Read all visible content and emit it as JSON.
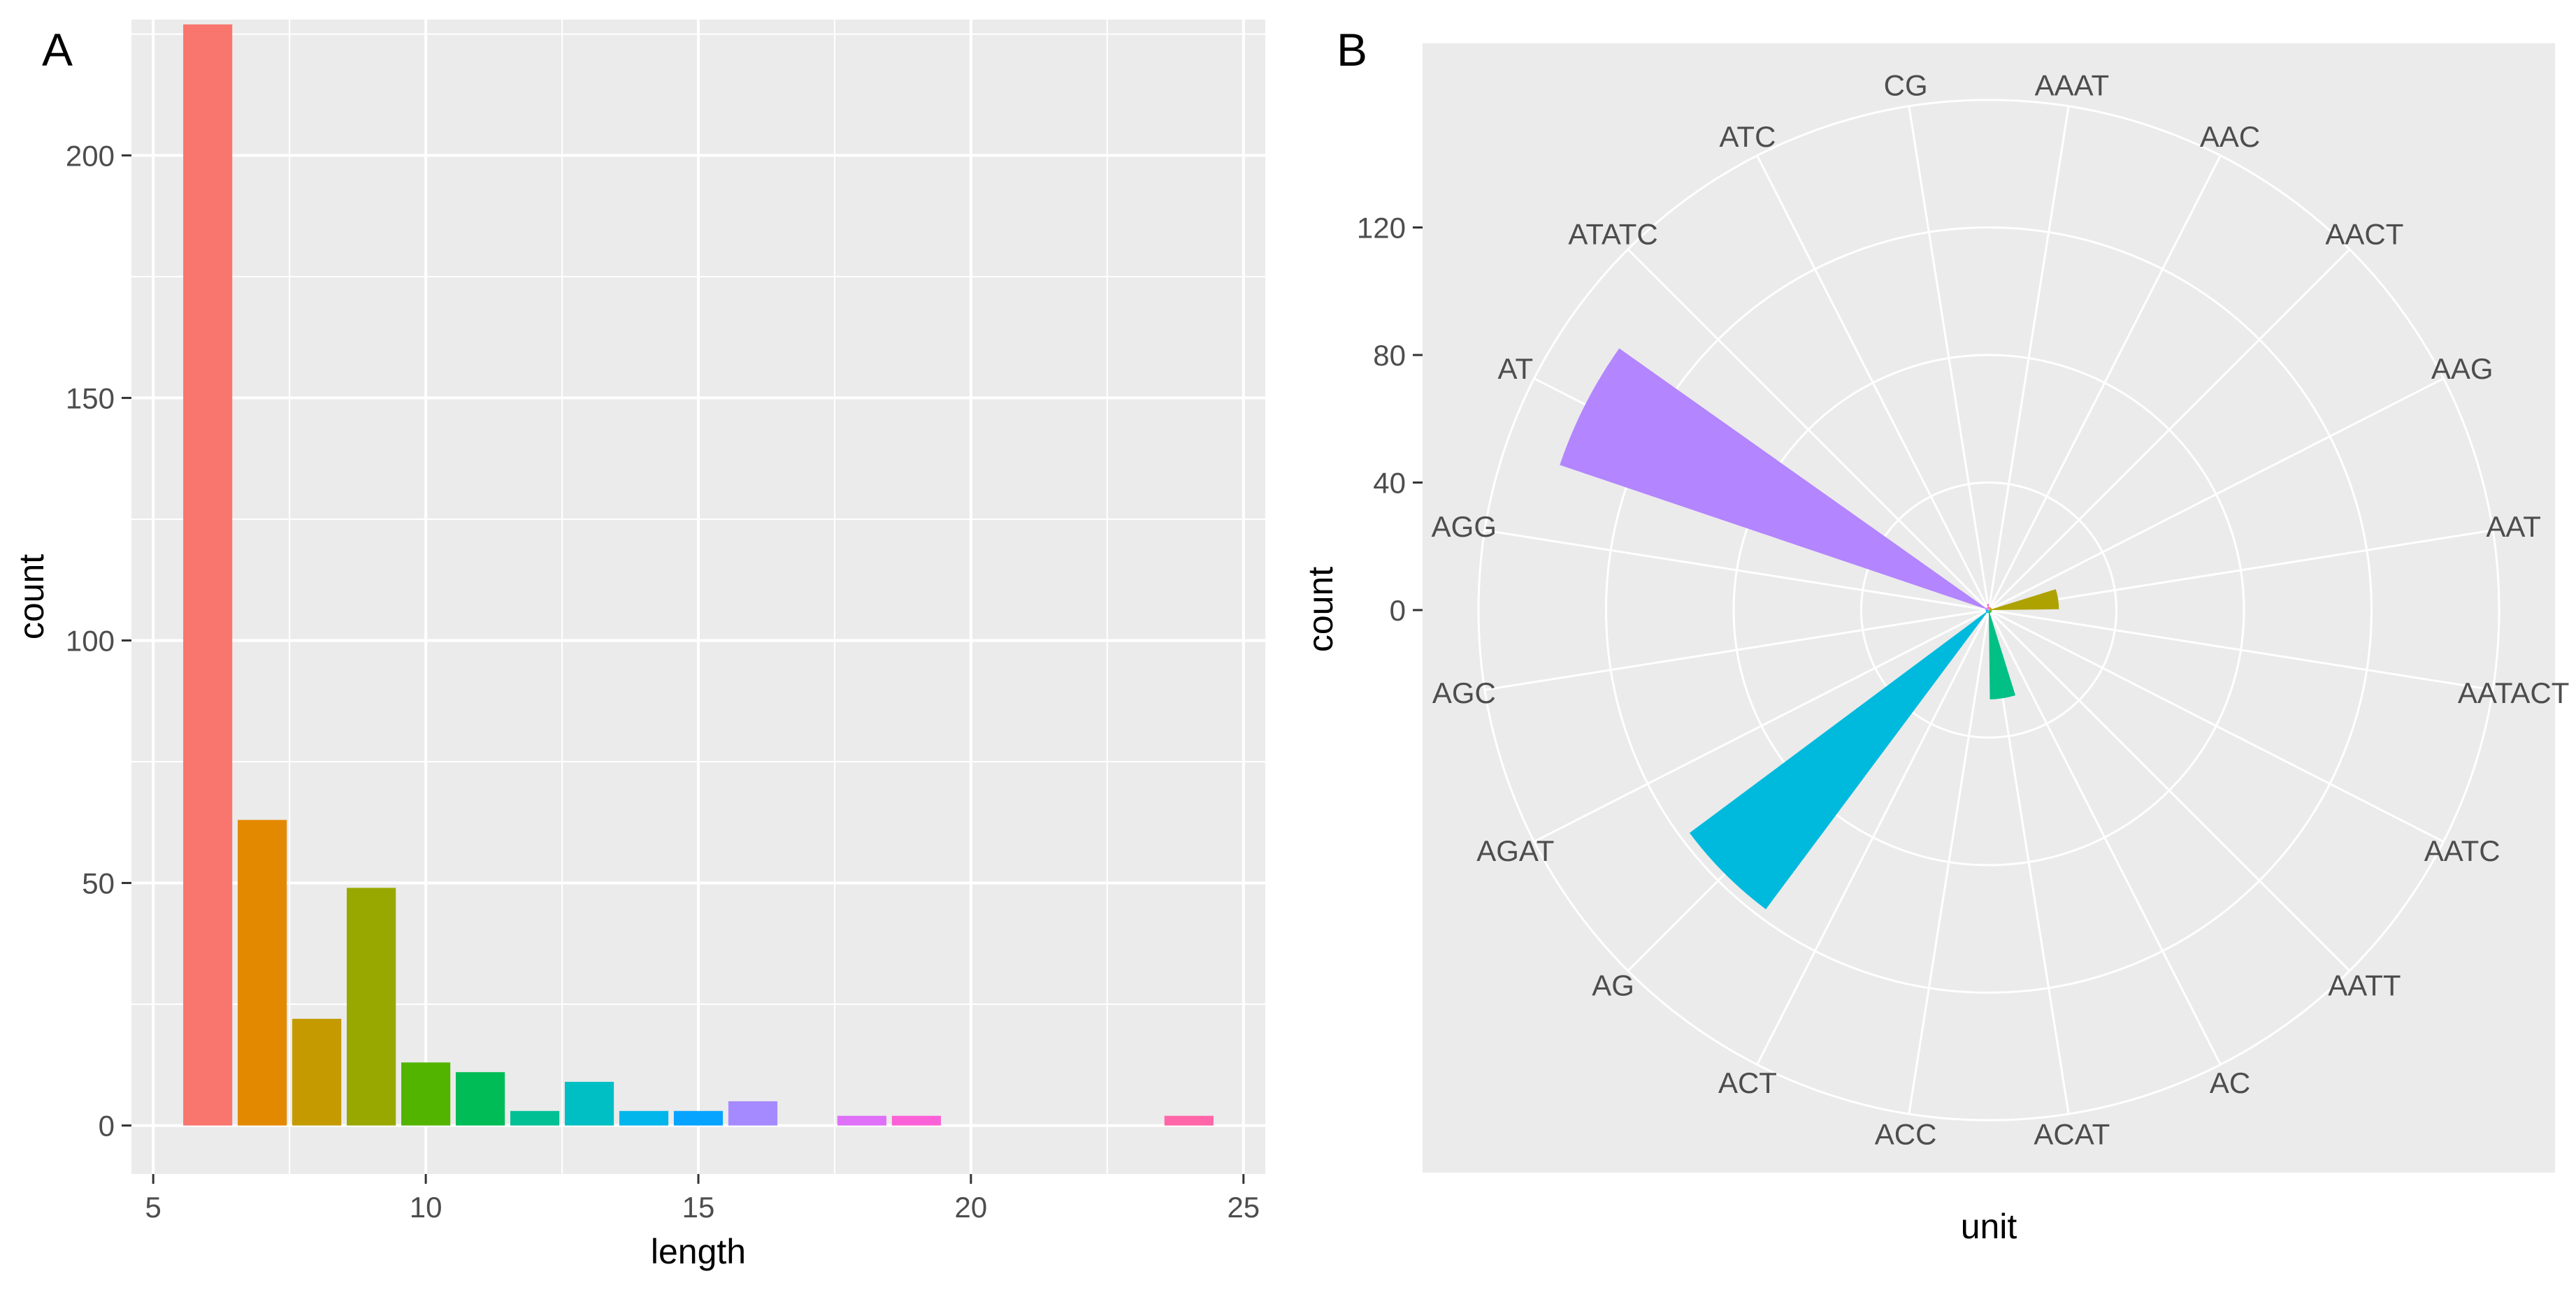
{
  "panels": {
    "left_tag": "A",
    "right_tag": "B"
  },
  "chart_data": [
    {
      "type": "bar",
      "title": "",
      "tag": "A",
      "xlabel": "length",
      "ylabel": "count",
      "xlim": [
        4.6,
        25.4
      ],
      "ylim": [
        -10,
        228
      ],
      "xticks": [
        5,
        10,
        15,
        20,
        25
      ],
      "yticks": [
        0,
        50,
        100,
        150,
        200
      ],
      "bar_width": 0.9,
      "grid": true,
      "legend": "none",
      "x": [
        6,
        7,
        8,
        9,
        10,
        11,
        12,
        13,
        14,
        15,
        16,
        18,
        19,
        24
      ],
      "values": [
        227,
        63,
        22,
        49,
        13,
        11,
        3,
        9,
        3,
        3,
        5,
        2,
        2,
        2
      ],
      "colors": [
        "#F8766D",
        "#E38900",
        "#C49A00",
        "#99A800",
        "#53B400",
        "#00BC56",
        "#00C094",
        "#00BFC4",
        "#00B6EB",
        "#06A4FF",
        "#A58AFF",
        "#DF70F8",
        "#FB61D7",
        "#FF66A8"
      ]
    },
    {
      "type": "polar-bar",
      "title": "",
      "tag": "B",
      "xlabel": "unit",
      "ylabel": "count",
      "rlim": [
        0,
        160
      ],
      "rticks": [
        0,
        40,
        80,
        120
      ],
      "grid": true,
      "legend": "none",
      "categories": [
        "AAAT",
        "AAC",
        "AACT",
        "AAG",
        "AAT",
        "AATACT",
        "AATC",
        "AATT",
        "AC",
        "ACAT",
        "ACC",
        "ACT",
        "AG",
        "AGAT",
        "AGC",
        "AGG",
        "AT",
        "ATATC",
        "ATC",
        "CG"
      ],
      "values": [
        1,
        1,
        1,
        1,
        22,
        1,
        1,
        1,
        1,
        28,
        1,
        1,
        117,
        1,
        1,
        1,
        142,
        1,
        1,
        2
      ],
      "colors": [
        "#F8766D",
        "#EC8239",
        "#DB8E00",
        "#C79800",
        "#AEA200",
        "#8FAA00",
        "#64B200",
        "#00B81B",
        "#00BD5C",
        "#00C086",
        "#00C1A7",
        "#00BFC4",
        "#00BADE",
        "#00B2F3",
        "#00A6FF",
        "#7997FF",
        "#B385FF",
        "#D874FD",
        "#EF67EB",
        "#FD61D3"
      ]
    }
  ]
}
